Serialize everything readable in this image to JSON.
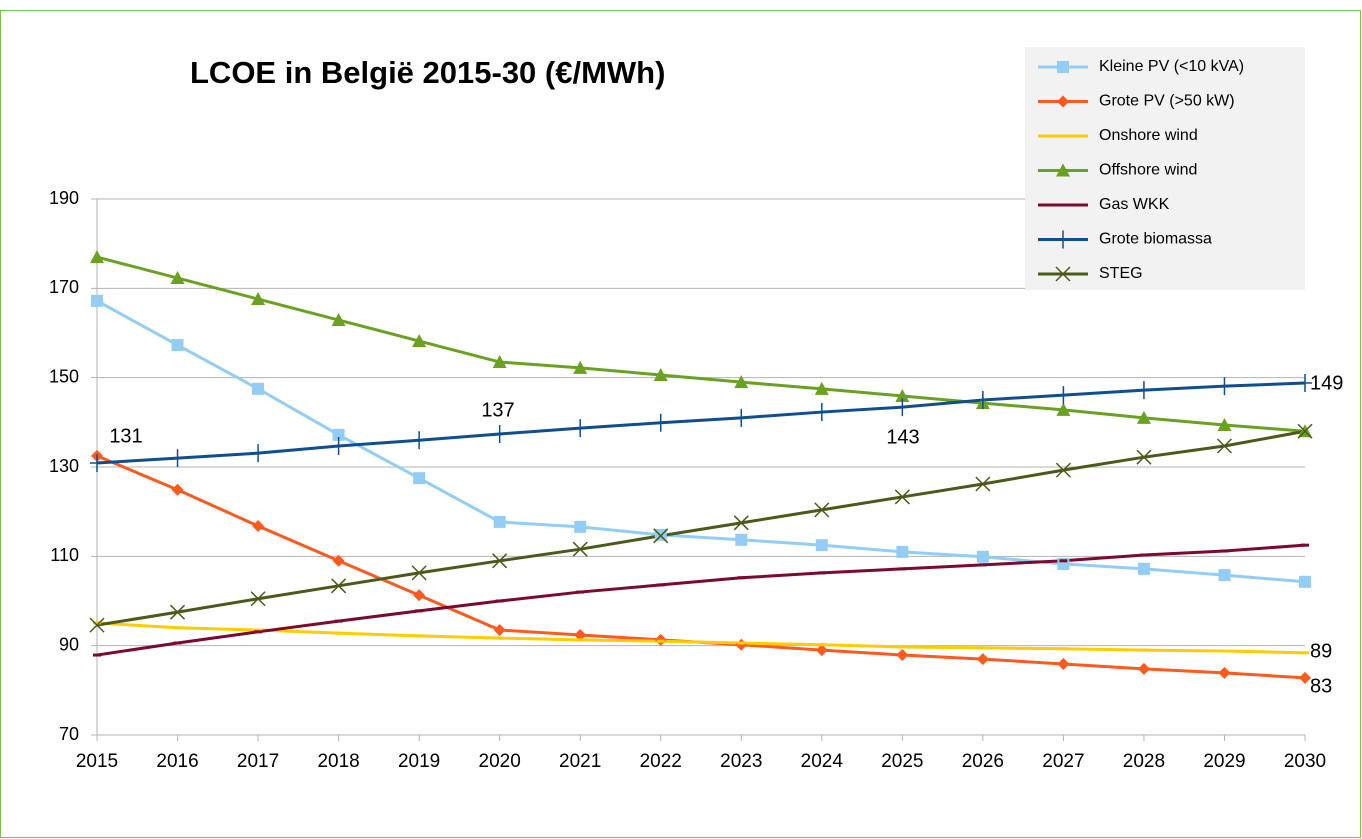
{
  "chart_data": {
    "type": "line",
    "title": "LCOE in België 2015-30 (€/MWh)",
    "categories": [
      "2015",
      "2016",
      "2017",
      "2018",
      "2019",
      "2020",
      "2021",
      "2022",
      "2023",
      "2024",
      "2025",
      "2026",
      "2027",
      "2028",
      "2029",
      "2030"
    ],
    "ylim": [
      70,
      190
    ],
    "yticks": [
      70,
      90,
      110,
      130,
      150,
      170,
      190
    ],
    "grid": true,
    "legend": "top-right",
    "annotations": [
      "131",
      "137",
      "143",
      "149",
      "89",
      "83"
    ],
    "series": [
      {
        "name": "Kleine PV (<10 kVA)",
        "color": "#93cdf5",
        "marker": "square",
        "values": [
          167.2,
          157.3,
          147.5,
          137.2,
          127.5,
          117.7,
          116.6,
          114.8,
          113.7,
          112.5,
          111,
          109.9,
          108.3,
          107.2,
          105.8,
          104.3
        ]
      },
      {
        "name": "Grote PV (>50 kW)",
        "color": "#ff5a1e",
        "marker": "diamond",
        "values": [
          132.5,
          124.9,
          116.8,
          109,
          101.3,
          93.5,
          92.4,
          91.3,
          90.2,
          89,
          87.9,
          87,
          85.9,
          84.8,
          83.9,
          82.8
        ]
      },
      {
        "name": "Onshore wind",
        "color": "#ffcc00",
        "marker": "dash",
        "values": [
          95.1,
          94,
          93.5,
          92.8,
          92.2,
          91.7,
          91.3,
          91,
          90.6,
          90.2,
          89.7,
          89.5,
          89.3,
          89,
          88.8,
          88.4
        ]
      },
      {
        "name": "Offshore wind",
        "color": "#6aa121",
        "marker": "triangle",
        "values": [
          177,
          172.3,
          167.6,
          162.9,
          158.2,
          153.5,
          152.2,
          150.6,
          149,
          147.5,
          145.9,
          144.3,
          142.8,
          141,
          139.4,
          138
        ]
      },
      {
        "name": "Gas WKK",
        "color": "#7b0a2e",
        "marker": "dash",
        "values": [
          87.9,
          90.6,
          93.1,
          95.5,
          97.8,
          100,
          102,
          103.6,
          105.2,
          106.3,
          107.2,
          108.1,
          109,
          110.3,
          111.2,
          112.5
        ]
      },
      {
        "name": "Grote biomassa",
        "color": "#0f4f8f",
        "marker": "plus",
        "values": [
          130.9,
          132,
          133.1,
          134.7,
          136,
          137.4,
          138.7,
          139.9,
          141,
          142.3,
          143.4,
          145,
          146.1,
          147.2,
          148.1,
          148.8
        ]
      },
      {
        "name": "STEG",
        "color": "#4b5a1a",
        "marker": "cross",
        "values": [
          94.6,
          97.5,
          100.5,
          103.4,
          106.3,
          109,
          111.6,
          114.6,
          117.5,
          120.4,
          123.3,
          126.2,
          129.3,
          132.2,
          134.7,
          138
        ]
      }
    ]
  }
}
